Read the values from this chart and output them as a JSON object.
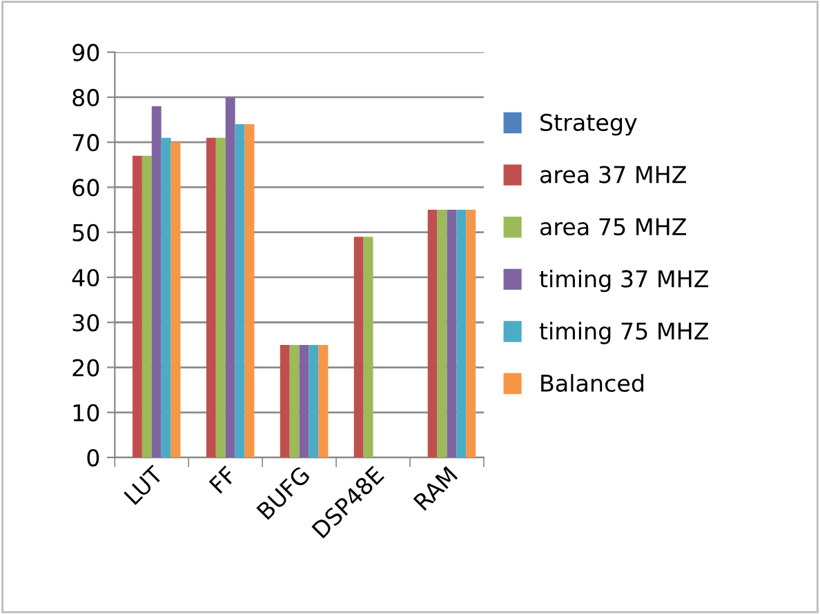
{
  "chart_data": {
    "type": "bar",
    "categories": [
      "LUT",
      "FF",
      "BUFG",
      "DSP48E",
      "RAM"
    ],
    "series": [
      {
        "name": "Strategy",
        "color": "#4f81bd",
        "values": [
          0,
          0,
          0,
          0,
          0
        ]
      },
      {
        "name": "area 37 MHZ",
        "color": "#c0504d",
        "values": [
          67,
          71,
          25,
          49,
          55
        ]
      },
      {
        "name": "area 75 MHZ",
        "color": "#9bbb59",
        "values": [
          67,
          71,
          25,
          49,
          55
        ]
      },
      {
        "name": "timing 37 MHZ",
        "color": "#8064a2",
        "values": [
          78,
          80,
          25,
          0,
          55
        ]
      },
      {
        "name": "timing 75 MHZ",
        "color": "#4bacc6",
        "values": [
          71,
          74,
          25,
          0,
          55
        ]
      },
      {
        "name": "Balanced",
        "color": "#f79646",
        "values": [
          70,
          74,
          25,
          0,
          55
        ]
      }
    ],
    "ylim": [
      0,
      90
    ],
    "yticks": [
      0,
      10,
      20,
      30,
      40,
      50,
      60,
      70,
      80,
      90
    ],
    "grid": "y",
    "legend": "right"
  }
}
